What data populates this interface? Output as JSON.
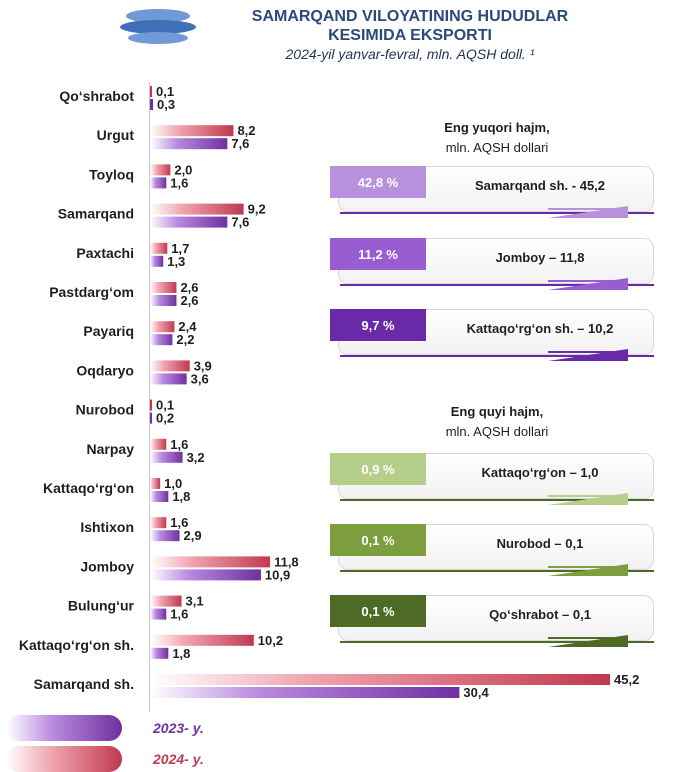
{
  "header": {
    "title_line1": "SAMARQAND VILOYATINING HUDUDLAR",
    "title_line2": "KESIMIDA EKSPORTI",
    "subtitle": "2024-yil yanvar-fevral, mln. AQSH doll. ¹"
  },
  "chart_data": {
    "type": "bar",
    "orientation": "horizontal",
    "categories": [
      "Qo‘shrabot",
      "Urgut",
      "Toyloq",
      "Samarqand",
      "Paxtachi",
      "Pastdarg‘om",
      "Payariq",
      "Oqdaryo",
      "Nurobod",
      "Narpay",
      "Kattaqo‘rg‘on",
      "Ishtixon",
      "Jomboy",
      "Bulung‘ur",
      "Kattaqo‘rg‘on sh.",
      "Samarqand sh."
    ],
    "series": [
      {
        "name": "2024- y.",
        "color": "#c0394e",
        "values": [
          0.1,
          8.2,
          2.0,
          9.2,
          1.7,
          2.6,
          2.4,
          3.9,
          0.1,
          1.6,
          1.0,
          1.6,
          11.8,
          3.1,
          10.2,
          45.2
        ],
        "labels": [
          "0,1",
          "8,2",
          "2,0",
          "9,2",
          "1,7",
          "2,6",
          "2,4",
          "3,9",
          "0,1",
          "1,6",
          "1,0",
          "1,6",
          "11,8",
          "3,1",
          "10,2",
          "45,2"
        ]
      },
      {
        "name": "2023- y.",
        "color": "#7030a0",
        "values": [
          0.3,
          7.6,
          1.6,
          7.6,
          1.3,
          2.6,
          2.2,
          3.6,
          0.2,
          3.2,
          1.8,
          2.9,
          10.9,
          1.6,
          1.8,
          30.4
        ],
        "labels": [
          "0,3",
          "7,6",
          "1,6",
          "7,6",
          "1,3",
          "2,6",
          "2,2",
          "3,6",
          "0,2",
          "3,2",
          "1,8",
          "2,9",
          "10,9",
          "1,6",
          "1,8",
          "30,4"
        ]
      }
    ],
    "xlim": [
      0,
      45.2
    ],
    "grid": false,
    "legend": "bottom-left"
  },
  "top_panel": {
    "title": "Eng yuqori hajm,",
    "subtitle": "mln. AQSH dollari",
    "items": [
      {
        "pct": "42,8 %",
        "name": "Samarqand sh. - 45,2",
        "color": "#b891dc"
      },
      {
        "pct": "11,2 %",
        "name": "Jomboy – 11,8",
        "color": "#9a5cd1"
      },
      {
        "pct": "9,7 %",
        "name": "Kattaqo‘rg‘on sh. – 10,2",
        "color": "#6a2aa8"
      }
    ]
  },
  "bottom_panel": {
    "title": "Eng quyi hajm,",
    "subtitle": "mln. AQSH dollari",
    "items": [
      {
        "pct": "0,9 %",
        "name": "Kattaqo‘rg‘on – 1,0",
        "color": "#b5cf8a"
      },
      {
        "pct": "0,1 %",
        "name": "Nurobod – 0,1",
        "color": "#7d9e3e"
      },
      {
        "pct": "0,1 %",
        "name": "Qo‘shrabot – 0,1",
        "color": "#4d6b25"
      }
    ]
  },
  "legend": {
    "label_2023": "2023- y.",
    "label_2024": "2024- y.",
    "color_2023": "#7030a0",
    "color_2024": "#c0394e"
  }
}
